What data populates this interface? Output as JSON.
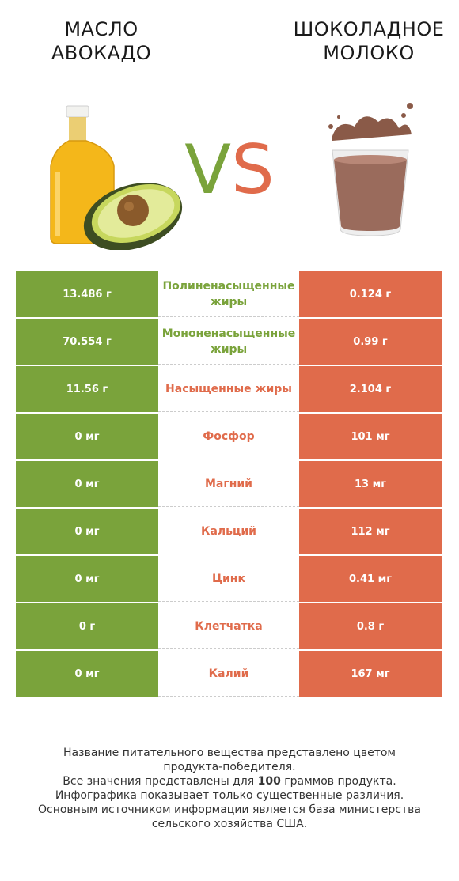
{
  "header": {
    "left_title_line1": "МАСЛО",
    "left_title_line2": "АВОКАДО",
    "right_title_line1": "ШОКОЛАДНОЕ",
    "right_title_line2": "МОЛОКО",
    "vs_v": "V",
    "vs_s": "S"
  },
  "colors": {
    "left": "#7aa33b",
    "right": "#e06b4b"
  },
  "images": {
    "left": "oil-bottle-and-avocado",
    "right": "chocolate-milk-glass"
  },
  "chart_data": {
    "type": "table",
    "columns": [
      "Масло авокадо",
      "",
      "Шоколадное молоко"
    ],
    "rows": [
      {
        "nutrient": "Полиненасыщенные жиры",
        "left": "13.486 г",
        "right": "0.124 г",
        "winner": "left"
      },
      {
        "nutrient": "Мононенасыщенные жиры",
        "left": "70.554 г",
        "right": "0.99 г",
        "winner": "left"
      },
      {
        "nutrient": "Насыщенные жиры",
        "left": "11.56 г",
        "right": "2.104 г",
        "winner": "right"
      },
      {
        "nutrient": "Фосфор",
        "left": "0 мг",
        "right": "101 мг",
        "winner": "right"
      },
      {
        "nutrient": "Магний",
        "left": "0 мг",
        "right": "13 мг",
        "winner": "right"
      },
      {
        "nutrient": "Кальций",
        "left": "0 мг",
        "right": "112 мг",
        "winner": "right"
      },
      {
        "nutrient": "Цинк",
        "left": "0 мг",
        "right": "0.41 мг",
        "winner": "right"
      },
      {
        "nutrient": "Клетчатка",
        "left": "0 г",
        "right": "0.8 г",
        "winner": "right"
      },
      {
        "nutrient": "Калий",
        "left": "0 мг",
        "right": "167 мг",
        "winner": "right"
      }
    ]
  },
  "footer": {
    "line1": "Название питательного вещества представлено цветом",
    "line2": "продукта-победителя.",
    "line3_pre": "Все значения представлены для ",
    "line3_bold": "100",
    "line3_post": " граммов продукта.",
    "line4": "Инфографика показывает только существенные различия.",
    "line5": "Основным источником информации является база министерства",
    "line6": "сельского хозяйства США."
  }
}
